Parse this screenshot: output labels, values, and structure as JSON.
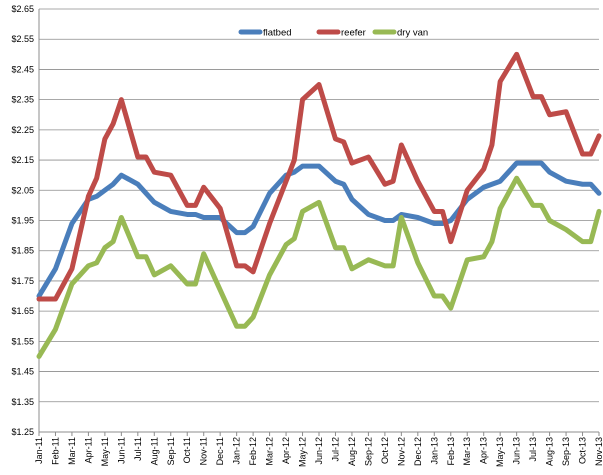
{
  "chart_data": {
    "type": "line",
    "title": "",
    "xlabel": "",
    "ylabel": "",
    "ylim": [
      1.25,
      2.65
    ],
    "yticks": [
      "$1.25",
      "$1.35",
      "$1.45",
      "$1.55",
      "$1.65",
      "$1.75",
      "$1.85",
      "$1.95",
      "$2.05",
      "$2.15",
      "$2.25",
      "$2.35",
      "$2.45",
      "$2.55",
      "$2.65"
    ],
    "grid": "horizontal",
    "legend_position": "top-center",
    "categories": [
      "Jan-11",
      "Feb-11",
      "Mar-11",
      "Apr-11",
      "May-11",
      "Jun-11",
      "Jul-11",
      "Aug-11",
      "Sep-11",
      "Oct-11",
      "Nov-11",
      "Dec-11",
      "Jan-12",
      "Feb-12",
      "Mar-12",
      "Apr-12",
      "May-12",
      "Jun-12",
      "Jul-12",
      "Aug-12",
      "Sep-12",
      "Oct-12",
      "Nov-12",
      "Dec-12",
      "Jan-13",
      "Feb-13",
      "Mar-13",
      "Apr-13",
      "May-13",
      "Jun-13",
      "Jul-13",
      "Aug-13",
      "Sep-13",
      "Oct-13",
      "Nov-13"
    ],
    "x_values": [
      "Jan-11",
      "Feb-11",
      "Mar-11",
      "Apr-11",
      "Apr-11",
      "May-11",
      "May-11",
      "Jun-11",
      "Jul-11",
      "Jul-11",
      "Aug-11",
      "Sep-11",
      "Oct-11",
      "Oct-11",
      "Nov-11",
      "Dec-11",
      "Jan-12",
      "Jan-12",
      "Feb-12",
      "Mar-12",
      "Apr-12",
      "Apr-12",
      "May-12",
      "Jun-12",
      "Jul-12",
      "Jul-12",
      "Aug-12",
      "Sep-12",
      "Oct-12",
      "Oct-12",
      "Nov-12",
      "Dec-12",
      "Jan-13",
      "Jan-13",
      "Feb-13",
      "Mar-13",
      "Apr-13",
      "Apr-13",
      "May-13",
      "Jun-13",
      "Jul-13",
      "Jul-13",
      "Aug-13",
      "Sep-13",
      "Oct-13",
      "Oct-13",
      "Nov-13"
    ],
    "series": [
      {
        "name": "flatbed",
        "color": "#4A7EBB",
        "values": [
          1.7,
          1.79,
          1.94,
          2.02,
          2.03,
          2.05,
          2.07,
          2.1,
          2.07,
          2.04,
          2.01,
          1.98,
          1.97,
          1.97,
          1.96,
          1.96,
          1.91,
          1.91,
          1.93,
          2.04,
          2.1,
          2.11,
          2.13,
          2.13,
          2.08,
          2.07,
          2.02,
          1.97,
          1.95,
          1.95,
          1.97,
          1.96,
          1.94,
          1.94,
          1.95,
          2.02,
          2.06,
          2.07,
          2.08,
          2.14,
          2.14,
          2.14,
          2.11,
          2.08,
          2.07,
          2.07,
          2.04
        ]
      },
      {
        "name": "reefer",
        "color": "#BE4B48",
        "values": [
          1.69,
          1.69,
          1.79,
          2.03,
          2.09,
          2.22,
          2.27,
          2.35,
          2.16,
          2.16,
          2.11,
          2.1,
          2.0,
          2.0,
          2.06,
          1.99,
          1.8,
          1.8,
          1.78,
          1.94,
          2.08,
          2.15,
          2.35,
          2.4,
          2.22,
          2.21,
          2.14,
          2.16,
          2.07,
          2.08,
          2.2,
          2.08,
          1.98,
          1.98,
          1.88,
          2.05,
          2.12,
          2.2,
          2.41,
          2.5,
          2.36,
          2.36,
          2.3,
          2.31,
          2.17,
          2.17,
          2.23
        ]
      },
      {
        "name": "dry van",
        "color": "#98B954",
        "values": [
          1.5,
          1.59,
          1.74,
          1.8,
          1.81,
          1.86,
          1.88,
          1.96,
          1.83,
          1.83,
          1.77,
          1.8,
          1.74,
          1.74,
          1.84,
          1.72,
          1.6,
          1.6,
          1.63,
          1.77,
          1.87,
          1.89,
          1.98,
          2.01,
          1.86,
          1.86,
          1.79,
          1.82,
          1.8,
          1.8,
          1.96,
          1.81,
          1.7,
          1.7,
          1.66,
          1.82,
          1.83,
          1.88,
          1.99,
          2.09,
          2.0,
          2.0,
          1.95,
          1.92,
          1.88,
          1.88,
          1.98
        ]
      }
    ]
  }
}
